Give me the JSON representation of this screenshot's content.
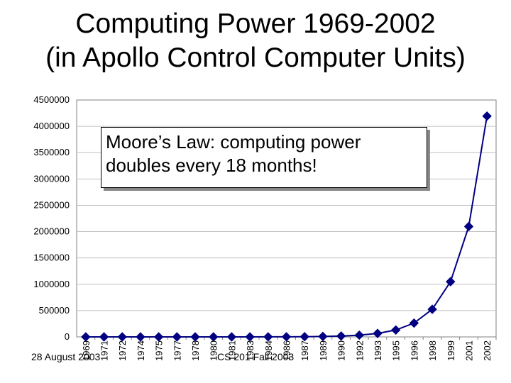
{
  "title_line1": "Computing Power 1969-2002",
  "title_line2": "(in Apollo Control Computer Units)",
  "callout_line1": "Moore’s Law: computing power",
  "callout_line2": "doubles every 18 months!",
  "footer_left": "28 August 2003",
  "footer_center": "CS 201 Fall 2003",
  "colors": {
    "series": "#000080",
    "plot_background": "#ffffff",
    "grid": "#c0c0c0"
  },
  "chart_data": {
    "type": "line",
    "title": "",
    "xlabel": "",
    "ylabel": "",
    "grid": true,
    "marker": "diamond",
    "ylim": [
      0,
      4500000
    ],
    "y_ticks": [
      0,
      500000,
      1000000,
      1500000,
      2000000,
      2500000,
      3000000,
      3500000,
      4000000,
      4500000
    ],
    "y_tick_labels": [
      "0",
      "500000",
      "1000000",
      "1500000",
      "2000000",
      "2500000",
      "3000000",
      "3500000",
      "4000000",
      "4500000"
    ],
    "categories": [
      "1969",
      "1971",
      "1972",
      "1974",
      "1975",
      "1977",
      "1978",
      "1980",
      "1981",
      "1983",
      "1984",
      "1986",
      "1987",
      "1989",
      "1990",
      "1992",
      "1993",
      "1995",
      "1996",
      "1998",
      "1999",
      "2001",
      "2002"
    ],
    "series": [
      {
        "values": [
          1,
          2,
          4,
          8,
          16,
          32,
          64,
          128,
          256,
          512,
          1024,
          2048,
          4096,
          8192,
          16384,
          32768,
          65536,
          131072,
          262144,
          524288,
          1048576,
          2097152,
          4194304
        ]
      }
    ]
  }
}
